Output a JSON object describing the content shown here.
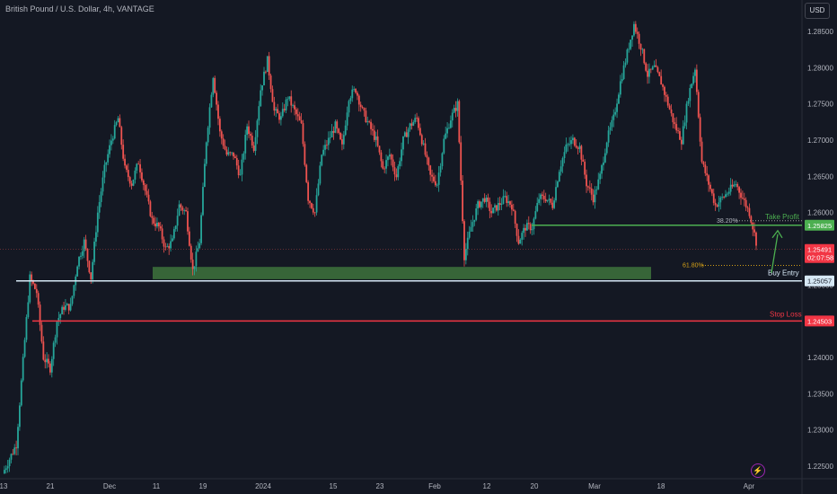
{
  "header": {
    "title": "British Pound / U.S. Dollar, 4h, VANTAGE",
    "currency_button": "USD"
  },
  "chart_data": {
    "type": "candlestick",
    "symbol": "British Pound / U.S. Dollar",
    "timeframe": "4h",
    "source": "VANTAGE",
    "ylim": [
      1.2225,
      1.2875
    ],
    "y_ticks": [
      "1.28500",
      "1.28000",
      "1.27500",
      "1.27000",
      "1.26500",
      "1.26000",
      "1.25500",
      "1.25000",
      "1.24500",
      "1.24000",
      "1.23500",
      "1.23000",
      "1.22500"
    ],
    "x_ticks": [
      "13",
      "21",
      "Dec",
      "11",
      "19",
      "2024",
      "15",
      "23",
      "Feb",
      "12",
      "20",
      "Mar",
      "18",
      "Apr"
    ],
    "price_path": [
      [
        0,
        1.224
      ],
      [
        2,
        1.228
      ],
      [
        4,
        1.251
      ],
      [
        5,
        1.249
      ],
      [
        6,
        1.24
      ],
      [
        7,
        1.2385
      ],
      [
        8,
        1.245
      ],
      [
        9,
        1.247
      ],
      [
        10,
        1.247
      ],
      [
        11,
        1.253
      ],
      [
        12,
        1.256
      ],
      [
        13,
        1.251
      ],
      [
        14,
        1.26
      ],
      [
        15,
        1.266
      ],
      [
        16,
        1.27
      ],
      [
        17,
        1.273
      ],
      [
        18,
        1.266
      ],
      [
        19,
        1.264
      ],
      [
        20,
        1.267
      ],
      [
        21,
        1.263
      ],
      [
        22,
        1.259
      ],
      [
        23,
        1.258
      ],
      [
        24,
        1.255
      ],
      [
        25,
        1.256
      ],
      [
        26,
        1.261
      ],
      [
        27,
        1.26
      ],
      [
        28,
        1.252
      ],
      [
        29,
        1.256
      ],
      [
        30,
        1.27
      ],
      [
        31,
        1.279
      ],
      [
        32,
        1.271
      ],
      [
        33,
        1.268
      ],
      [
        34,
        1.268
      ],
      [
        35,
        1.265
      ],
      [
        36,
        1.272
      ],
      [
        37,
        1.269
      ],
      [
        38,
        1.277
      ],
      [
        39,
        1.281
      ],
      [
        40,
        1.274
      ],
      [
        41,
        1.273
      ],
      [
        42,
        1.276
      ],
      [
        43,
        1.274
      ],
      [
        44,
        1.272
      ],
      [
        45,
        1.262
      ],
      [
        46,
        1.26
      ],
      [
        47,
        1.268
      ],
      [
        48,
        1.27
      ],
      [
        49,
        1.272
      ],
      [
        50,
        1.269
      ],
      [
        51,
        1.276
      ],
      [
        52,
        1.277
      ],
      [
        53,
        1.274
      ],
      [
        54,
        1.272
      ],
      [
        55,
        1.27
      ],
      [
        56,
        1.266
      ],
      [
        57,
        1.268
      ],
      [
        58,
        1.265
      ],
      [
        59,
        1.27
      ],
      [
        60,
        1.272
      ],
      [
        61,
        1.273
      ],
      [
        62,
        1.269
      ],
      [
        63,
        1.265
      ],
      [
        64,
        1.264
      ],
      [
        65,
        1.27
      ],
      [
        66,
        1.273
      ],
      [
        67,
        1.275
      ],
      [
        68,
        1.254
      ],
      [
        69,
        1.258
      ],
      [
        70,
        1.261
      ],
      [
        71,
        1.262
      ],
      [
        72,
        1.26
      ],
      [
        73,
        1.261
      ],
      [
        74,
        1.262
      ],
      [
        75,
        1.261
      ],
      [
        76,
        1.256
      ],
      [
        77,
        1.258
      ],
      [
        78,
        1.258
      ],
      [
        79,
        1.262
      ],
      [
        80,
        1.262
      ],
      [
        81,
        1.261
      ],
      [
        82,
        1.266
      ],
      [
        83,
        1.269
      ],
      [
        84,
        1.27
      ],
      [
        85,
        1.269
      ],
      [
        86,
        1.264
      ],
      [
        87,
        1.262
      ],
      [
        88,
        1.265
      ],
      [
        89,
        1.27
      ],
      [
        90,
        1.273
      ],
      [
        91,
        1.278
      ],
      [
        92,
        1.282
      ],
      [
        93,
        1.286
      ],
      [
        94,
        1.283
      ],
      [
        95,
        1.279
      ],
      [
        96,
        1.28
      ],
      [
        97,
        1.278
      ],
      [
        98,
        1.275
      ],
      [
        99,
        1.272
      ],
      [
        100,
        1.27
      ],
      [
        101,
        1.276
      ],
      [
        102,
        1.28
      ],
      [
        103,
        1.267
      ],
      [
        104,
        1.264
      ],
      [
        105,
        1.261
      ],
      [
        106,
        1.262
      ],
      [
        107,
        1.263
      ],
      [
        108,
        1.264
      ],
      [
        109,
        1.262
      ],
      [
        110,
        1.26
      ],
      [
        111,
        1.256
      ]
    ],
    "current_price": 1.25491,
    "countdown": "02:07:58",
    "levels": [
      {
        "label": "Take Profit",
        "price": 1.25825,
        "price_label": "1.25825",
        "color": "#4caf50",
        "fib": "38.20%"
      },
      {
        "label": "Buy Entry",
        "price": 1.25057,
        "price_label": "1.25057",
        "color": "#d6e8f5",
        "fib": "61.80%"
      },
      {
        "label": "Stop Loss",
        "price": 1.24503,
        "price_label": "1.24503",
        "color": "#f23645"
      }
    ],
    "support_zone": {
      "from": 1.2508,
      "to": 1.2525,
      "color": "#3b6e3b"
    },
    "colors": {
      "up": "#26a69a",
      "down": "#ef5350",
      "background": "#141823"
    }
  }
}
